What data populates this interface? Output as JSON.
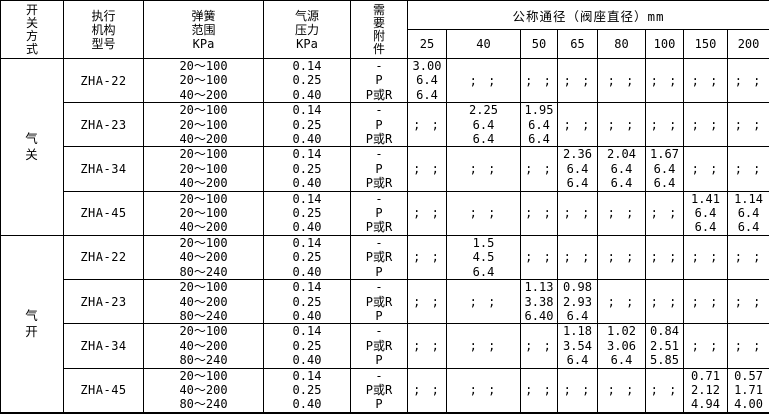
{
  "table": {
    "headers": {
      "switch_mode": [
        "开",
        "关",
        "方",
        "式"
      ],
      "actuator_model": [
        "执行",
        "机构",
        "型号"
      ],
      "spring_range": [
        "弹簧",
        "范围",
        "KPa"
      ],
      "air_pressure": [
        "气源",
        "压力",
        "KPa"
      ],
      "accessories": [
        "需",
        "要",
        "附",
        "件"
      ],
      "nominal_diameter": "公称通径（阀座直径）mm",
      "sizes": [
        "25",
        "40",
        "50",
        "65",
        "80",
        "100",
        "150",
        "200"
      ]
    },
    "ditto_mark": "; ;",
    "groups": [
      {
        "switch_mode": [
          "气",
          "关"
        ],
        "models": [
          {
            "model": "ZHA-22",
            "spring": [
              "20～100",
              "20～100",
              "40～200"
            ],
            "pressure": [
              "0.14",
              "0.25",
              "0.40"
            ],
            "accessory": [
              "-",
              "P",
              "P或R"
            ],
            "sizes": {
              "25": [
                "3.00",
                "6.4",
                "6.4"
              ]
            }
          },
          {
            "model": "ZHA-23",
            "spring": [
              "20～100",
              "20～100",
              "40～200"
            ],
            "pressure": [
              "0.14",
              "0.25",
              "0.40"
            ],
            "accessory": [
              "-",
              "P",
              "P或R"
            ],
            "sizes": {
              "40": [
                "2.25",
                "6.4",
                "6.4"
              ],
              "50": [
                "1.95",
                "6.4",
                "6.4"
              ]
            }
          },
          {
            "model": "ZHA-34",
            "spring": [
              "20～100",
              "20～100",
              "40～200"
            ],
            "pressure": [
              "0.14",
              "0.25",
              "0.40"
            ],
            "accessory": [
              "-",
              "P",
              "P或R"
            ],
            "sizes": {
              "65": [
                "2.36",
                "6.4",
                "6.4"
              ],
              "80": [
                "2.04",
                "6.4",
                "6.4"
              ],
              "100": [
                "1.67",
                "6.4",
                "6.4"
              ]
            }
          },
          {
            "model": "ZHA-45",
            "spring": [
              "20～100",
              "20～100",
              "40～200"
            ],
            "pressure": [
              "0.14",
              "0.25",
              "0.40"
            ],
            "accessory": [
              "-",
              "P",
              "P或R"
            ],
            "sizes": {
              "150": [
                "1.41",
                "6.4",
                "6.4"
              ],
              "200": [
                "1.14",
                "6.4",
                "6.4"
              ]
            }
          }
        ]
      },
      {
        "switch_mode": [
          "气",
          "开"
        ],
        "models": [
          {
            "model": "ZHA-22",
            "spring": [
              "20～100",
              "40～200",
              "80～240"
            ],
            "pressure": [
              "0.14",
              "0.25",
              "0.40"
            ],
            "accessory": [
              "-",
              "P或R",
              "P"
            ],
            "sizes": {
              "40": [
                "1.5",
                "4.5",
                "6.4"
              ]
            }
          },
          {
            "model": "ZHA-23",
            "spring": [
              "20～100",
              "40～200",
              "80～240"
            ],
            "pressure": [
              "0.14",
              "0.25",
              "0.40"
            ],
            "accessory": [
              "-",
              "P或R",
              "P"
            ],
            "sizes": {
              "50": [
                "1.13",
                "3.38",
                "6.40"
              ],
              "65": [
                "0.98",
                "2.93",
                "6.4"
              ]
            }
          },
          {
            "model": "ZHA-34",
            "spring": [
              "20～100",
              "40～200",
              "80～240"
            ],
            "pressure": [
              "0.14",
              "0.25",
              "0.40"
            ],
            "accessory": [
              "-",
              "P或R",
              "P"
            ],
            "sizes": {
              "65": [
                "1.18",
                "3.54",
                "6.4"
              ],
              "80": [
                "1.02",
                "3.06",
                "6.4"
              ],
              "100": [
                "0.84",
                "2.51",
                "5.85"
              ]
            }
          },
          {
            "model": "ZHA-45",
            "spring": [
              "20～100",
              "40～200",
              "80～240"
            ],
            "pressure": [
              "0.14",
              "0.25",
              "0.40"
            ],
            "accessory": [
              "-",
              "P或R",
              "P"
            ],
            "sizes": {
              "150": [
                "0.71",
                "2.12",
                "4.94"
              ],
              "200": [
                "0.57",
                "1.71",
                "4.00"
              ]
            }
          }
        ]
      }
    ]
  }
}
